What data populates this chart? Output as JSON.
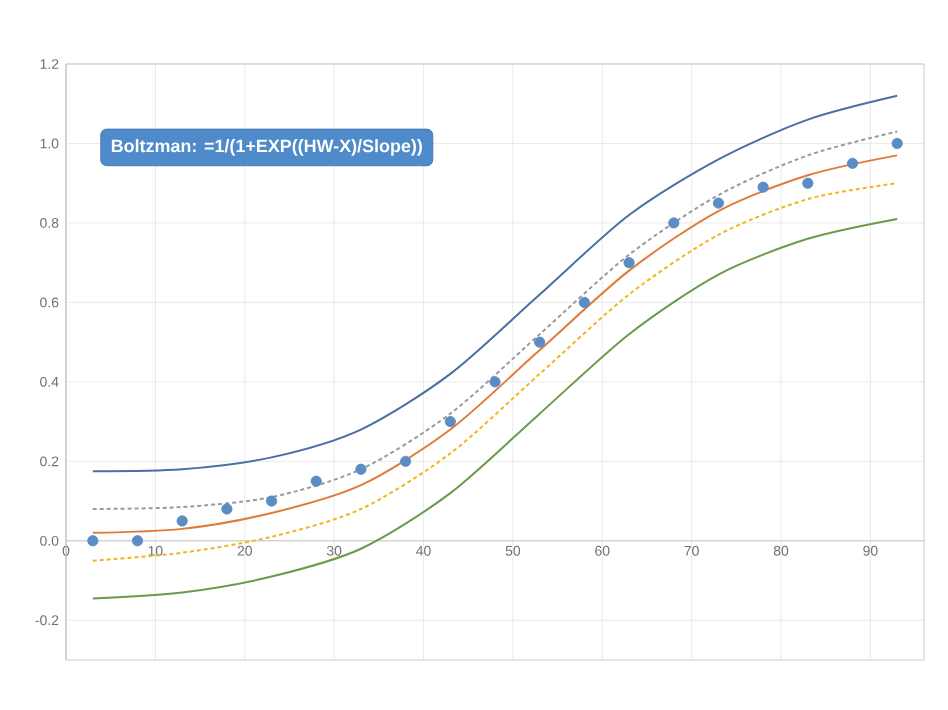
{
  "chart_data": {
    "type": "scatter",
    "annotations": [
      "Boltzman: =1/(1+EXP((HW-X)/Slope))"
    ],
    "xlim": [
      0,
      96
    ],
    "ylim": [
      -0.3,
      1.2
    ],
    "xticks": [
      0,
      10,
      20,
      30,
      40,
      50,
      60,
      70,
      80,
      90
    ],
    "yticks": [
      {
        "value": -0.2,
        "label": "-0.2"
      },
      {
        "value": 0,
        "label": "0.0"
      },
      {
        "value": 0.2,
        "label": "0.2"
      },
      {
        "value": 0.4,
        "label": "0.4"
      },
      {
        "value": 0.6,
        "label": "0.6"
      },
      {
        "value": 0.8,
        "label": "0.8"
      },
      {
        "value": 1.0,
        "label": "1.0"
      },
      {
        "value": 1.2,
        "label": "1.2"
      }
    ],
    "grid": true,
    "series": [
      {
        "type": "line",
        "color": "#4a6fa5",
        "line_style": "solid",
        "marker": "none",
        "x": [
          3,
          13,
          23,
          33,
          43,
          53,
          63,
          73,
          83,
          93
        ],
        "values": [
          0.175,
          0.18,
          0.21,
          0.28,
          0.42,
          0.62,
          0.82,
          0.96,
          1.06,
          1.12
        ]
      },
      {
        "type": "line",
        "color": "#9a9a9a",
        "line_style": "dashed",
        "marker": "none",
        "x": [
          3,
          13,
          23,
          33,
          43,
          53,
          63,
          73,
          83,
          93
        ],
        "values": [
          0.08,
          0.085,
          0.11,
          0.18,
          0.32,
          0.52,
          0.72,
          0.87,
          0.97,
          1.03
        ]
      },
      {
        "type": "line",
        "color": "#e07b39",
        "line_style": "solid",
        "marker": "none",
        "x": [
          3,
          13,
          23,
          33,
          43,
          53,
          63,
          73,
          83,
          93
        ],
        "values": [
          0.02,
          0.03,
          0.07,
          0.14,
          0.28,
          0.48,
          0.68,
          0.83,
          0.92,
          0.97
        ]
      },
      {
        "type": "line",
        "color": "#f2b61c",
        "line_style": "dashed",
        "marker": "none",
        "x": [
          3,
          13,
          23,
          33,
          43,
          53,
          63,
          73,
          83,
          93
        ],
        "values": [
          -0.05,
          -0.03,
          0.01,
          0.08,
          0.22,
          0.42,
          0.62,
          0.77,
          0.86,
          0.9
        ]
      },
      {
        "type": "line",
        "color": "#6a9a4a",
        "line_style": "solid",
        "marker": "none",
        "x": [
          3,
          13,
          23,
          33,
          43,
          53,
          63,
          73,
          83,
          93
        ],
        "values": [
          -0.145,
          -0.13,
          -0.09,
          -0.02,
          0.12,
          0.32,
          0.52,
          0.67,
          0.76,
          0.81
        ]
      },
      {
        "marker": "circle",
        "color": "#5b8cc4",
        "x": [
          3,
          8,
          13,
          18,
          23,
          28,
          33,
          38,
          43,
          48,
          53,
          58,
          63,
          68,
          73,
          78,
          83,
          88,
          93
        ],
        "values": [
          0,
          0,
          0.05,
          0.08,
          0.1,
          0.15,
          0.18,
          0.2,
          0.3,
          0.4,
          0.5,
          0.6,
          0.7,
          0.8,
          0.85,
          0.89,
          0.9,
          0.95,
          1.0
        ]
      }
    ]
  }
}
